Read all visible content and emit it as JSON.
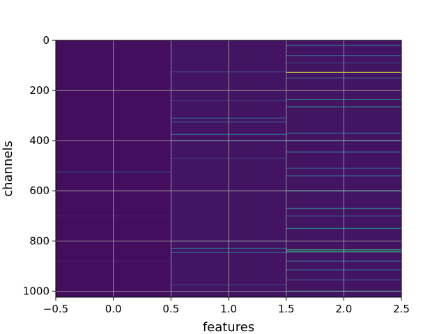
{
  "chart_data": {
    "type": "heatmap",
    "title": "",
    "xlabel": "features",
    "ylabel": "channels",
    "xlim": [
      -0.5,
      2.5
    ],
    "ylim": [
      1024,
      0
    ],
    "y_inverted": true,
    "grid": true,
    "colormap": "viridis",
    "value_range": [
      0,
      1
    ],
    "x_ticks": [
      {
        "value": -0.5,
        "label": "−0.5"
      },
      {
        "value": 0.0,
        "label": "0.0"
      },
      {
        "value": 0.5,
        "label": "0.5"
      },
      {
        "value": 1.0,
        "label": "1.0"
      },
      {
        "value": 1.5,
        "label": "1.5"
      },
      {
        "value": 2.0,
        "label": "2.0"
      },
      {
        "value": 2.5,
        "label": "2.5"
      }
    ],
    "y_ticks": [
      {
        "value": 0,
        "label": "0"
      },
      {
        "value": 200,
        "label": "200"
      },
      {
        "value": 400,
        "label": "400"
      },
      {
        "value": 600,
        "label": "600"
      },
      {
        "value": 800,
        "label": "800"
      },
      {
        "value": 1000,
        "label": "1000"
      }
    ],
    "columns": [
      {
        "feature": 0,
        "base_value": 0.04,
        "highlights": [
          {
            "channel": 525,
            "value": 0.18
          },
          {
            "channel": 700,
            "value": 0.1
          },
          {
            "channel": 880,
            "value": 0.08
          }
        ]
      },
      {
        "feature": 1,
        "base_value": 0.06,
        "highlights": [
          {
            "channel": 125,
            "value": 0.2
          },
          {
            "channel": 240,
            "value": 0.15
          },
          {
            "channel": 310,
            "value": 0.3
          },
          {
            "channel": 325,
            "value": 0.25
          },
          {
            "channel": 375,
            "value": 0.35
          },
          {
            "channel": 400,
            "value": 0.3
          },
          {
            "channel": 470,
            "value": 0.15
          },
          {
            "channel": 800,
            "value": 0.2
          },
          {
            "channel": 830,
            "value": 0.35
          },
          {
            "channel": 845,
            "value": 0.3
          },
          {
            "channel": 975,
            "value": 0.2
          }
        ]
      },
      {
        "feature": 2,
        "base_value": 0.06,
        "highlights": [
          {
            "channel": 20,
            "value": 0.25
          },
          {
            "channel": 60,
            "value": 0.3
          },
          {
            "channel": 90,
            "value": 0.2
          },
          {
            "channel": 128,
            "value": 0.9
          },
          {
            "channel": 150,
            "value": 0.25
          },
          {
            "channel": 235,
            "value": 0.45
          },
          {
            "channel": 265,
            "value": 0.4
          },
          {
            "channel": 370,
            "value": 0.3
          },
          {
            "channel": 400,
            "value": 0.45
          },
          {
            "channel": 445,
            "value": 0.4
          },
          {
            "channel": 510,
            "value": 0.3
          },
          {
            "channel": 540,
            "value": 0.3
          },
          {
            "channel": 600,
            "value": 0.5
          },
          {
            "channel": 670,
            "value": 0.35
          },
          {
            "channel": 700,
            "value": 0.25
          },
          {
            "channel": 750,
            "value": 0.4
          },
          {
            "channel": 835,
            "value": 0.6
          },
          {
            "channel": 843,
            "value": 0.55
          },
          {
            "channel": 880,
            "value": 0.3
          },
          {
            "channel": 915,
            "value": 0.3
          },
          {
            "channel": 955,
            "value": 0.25
          },
          {
            "channel": 1000,
            "value": 0.5
          }
        ]
      }
    ]
  }
}
